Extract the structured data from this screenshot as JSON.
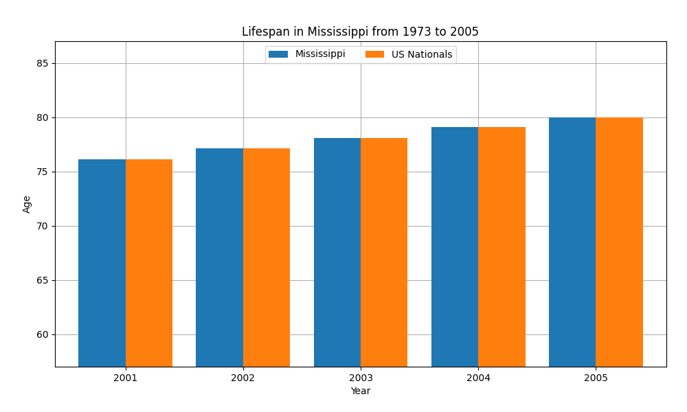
{
  "chart_data": {
    "type": "bar",
    "title": "Lifespan in Mississippi from 1973 to 2005",
    "xlabel": "Year",
    "ylabel": "Age",
    "categories": [
      "2001",
      "2002",
      "2003",
      "2004",
      "2005"
    ],
    "series": [
      {
        "name": "Mississippi",
        "values": [
          76.1,
          77.1,
          78.1,
          79.1,
          80.0
        ]
      },
      {
        "name": "US Nationals",
        "values": [
          76.1,
          77.1,
          78.1,
          79.1,
          80.0
        ]
      }
    ],
    "ylim": [
      57,
      87
    ],
    "yticks": [
      60,
      65,
      70,
      75,
      80,
      85
    ],
    "grid": true,
    "legend": "upper center"
  }
}
